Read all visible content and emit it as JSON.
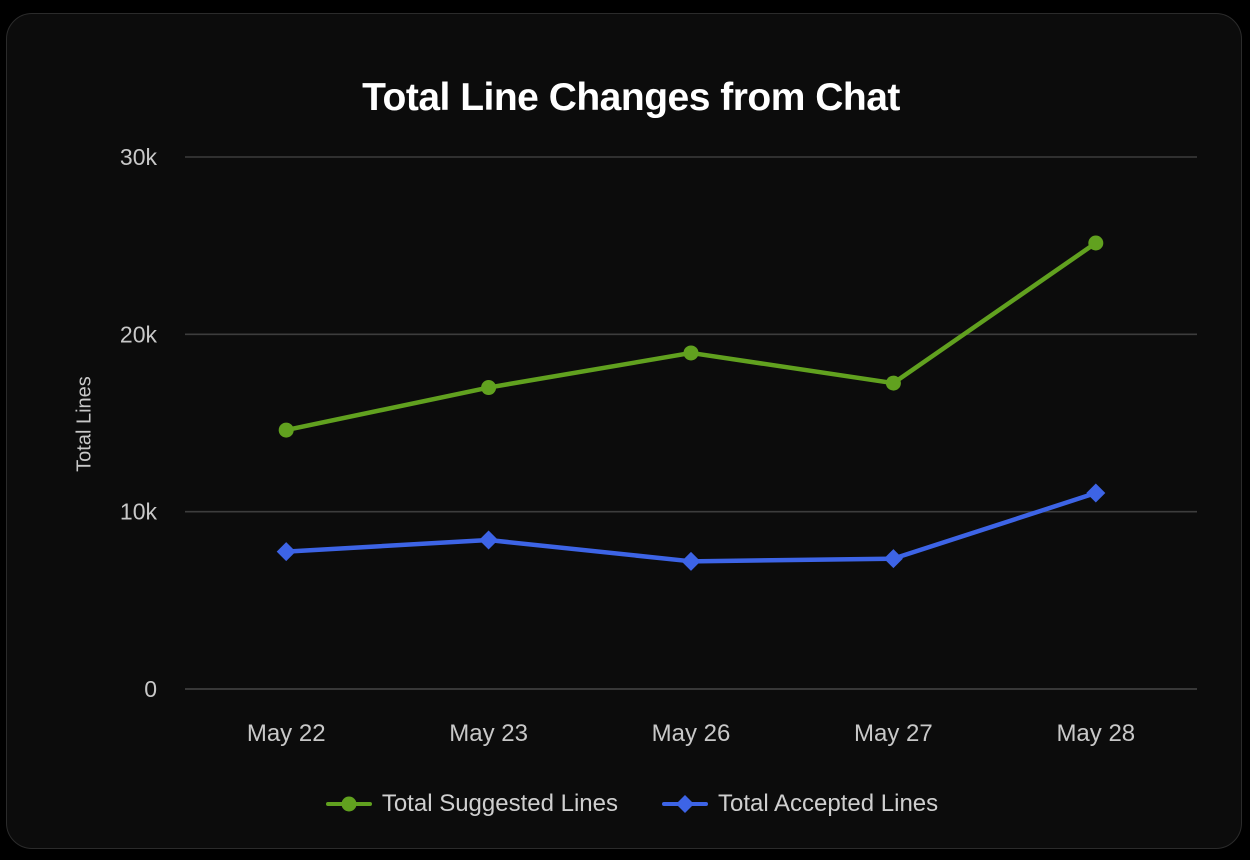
{
  "chart_data": {
    "type": "line",
    "title": "Total Line Changes from Chat",
    "xlabel": "",
    "ylabel": "Total Lines",
    "categories": [
      "May 22",
      "May 23",
      "May 26",
      "May 27",
      "May 28"
    ],
    "series": [
      {
        "name": "Total Suggested Lines",
        "color": "#61a11f",
        "marker": "circle",
        "values": [
          14600,
          17000,
          18950,
          17250,
          25150
        ]
      },
      {
        "name": "Total Accepted Lines",
        "color": "#3d64e6",
        "marker": "diamond",
        "values": [
          7750,
          8400,
          7200,
          7350,
          11050
        ]
      }
    ],
    "y_ticks": [
      {
        "value": 0,
        "label": "0"
      },
      {
        "value": 10000,
        "label": "10k"
      },
      {
        "value": 20000,
        "label": "20k"
      },
      {
        "value": 30000,
        "label": "30k"
      }
    ],
    "ylim": [
      0,
      30000
    ],
    "grid": true,
    "legend_position": "bottom"
  },
  "colors": {
    "page_background": "#000000",
    "card_background": "#0c0c0c",
    "card_border": "#2b2b2b",
    "grid_line": "#3d3d3d",
    "zero_line": "#474747",
    "axis_text": "#c8c8c8",
    "title_text": "#ffffff",
    "legend_text": "#cfcfcf"
  }
}
